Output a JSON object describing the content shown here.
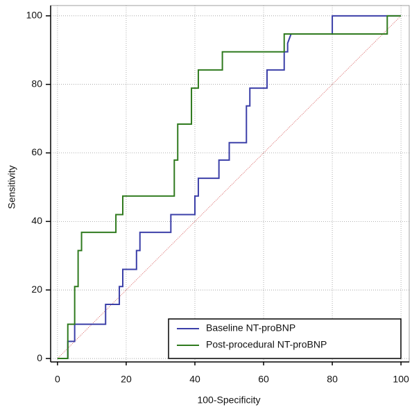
{
  "chart_data": {
    "type": "line",
    "x_label": "100-Specificity",
    "y_label": "Sensitivity",
    "xlim": [
      -2,
      102.4
    ],
    "ylim": [
      -1,
      103
    ],
    "xticks": [
      0,
      20,
      40,
      60,
      80,
      100
    ],
    "yticks": [
      0,
      20,
      40,
      60,
      80,
      100
    ],
    "grid": true,
    "legend": "lower right",
    "series": [
      {
        "name": "Baseline NT-proBNP",
        "color": "#3b3fa8",
        "x": [
          0,
          3,
          3,
          5,
          5,
          14,
          14,
          18,
          18,
          19,
          19,
          23,
          23,
          24,
          24,
          33,
          33,
          40,
          40,
          41,
          41,
          47,
          47,
          50,
          50,
          55,
          55,
          56,
          56,
          61,
          61,
          66,
          66,
          67,
          67,
          68,
          80,
          80,
          100
        ],
        "y": [
          0,
          0,
          5,
          5,
          10,
          10,
          15.8,
          15.8,
          21,
          21,
          26,
          26,
          31.5,
          31.5,
          36.8,
          36.8,
          42,
          42,
          47.4,
          47.4,
          52.6,
          52.6,
          57.9,
          57.9,
          63,
          63,
          73.7,
          73.7,
          78.9,
          78.9,
          84.2,
          84.2,
          89.5,
          89.5,
          92,
          94.7,
          94.7,
          100,
          100
        ]
      },
      {
        "name": "Post-procedural NT-proBNP",
        "color": "#2f7a1e",
        "x": [
          0,
          3,
          3,
          5,
          5,
          6,
          6,
          7,
          7,
          17,
          17,
          19,
          19,
          34,
          34,
          35,
          35,
          39,
          39,
          41,
          41,
          48,
          48,
          66,
          66,
          96,
          96,
          100
        ],
        "y": [
          0,
          0,
          10,
          10,
          21,
          21,
          31.5,
          31.5,
          36.8,
          36.8,
          42,
          42,
          47.4,
          47.4,
          57.9,
          57.9,
          68.4,
          68.4,
          78.9,
          78.9,
          84.2,
          84.2,
          89.5,
          89.5,
          94.7,
          94.7,
          100,
          100
        ]
      }
    ]
  }
}
